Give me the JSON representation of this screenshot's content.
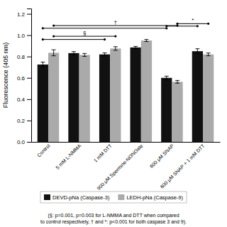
{
  "chart_data": {
    "type": "bar",
    "ylabel": "Fluorescence (405 nm)",
    "categories": [
      "Control",
      "5 mM L-NMMA",
      "1 mM DTT",
      "900 μM Spermine-NONOate",
      "600 μM SNAP",
      "600 μM SNAP + 1 mM DTT"
    ],
    "series": [
      {
        "name": "DEVD-pNa (Caspase-3)",
        "color": "#111111",
        "values": [
          0.725,
          0.832,
          0.82,
          0.885,
          0.6,
          0.85
        ],
        "errors": [
          0.023,
          0.014,
          0.014,
          0.01,
          0.016,
          0.023
        ]
      },
      {
        "name": "LEDH-pNa (Caspase-9)",
        "color": "#aaaaaa",
        "values": [
          0.835,
          0.815,
          0.875,
          0.95,
          0.563,
          0.82
        ],
        "errors": [
          0.028,
          0.014,
          0.017,
          0.01,
          0.013,
          0.013
        ]
      }
    ],
    "ylim": [
      0.0,
      1.25
    ],
    "yticks": [
      {
        "value": 0.0,
        "label": "0.0"
      },
      0.2,
      0.4,
      0.6,
      0.8,
      {
        "value": 1.0,
        "label": "1.0"
      },
      1.2
    ],
    "annotations": [
      {
        "label": "§",
        "from": "Control",
        "to": "1 mM DTT",
        "y": [
          0.96,
          0.99
        ]
      },
      {
        "label": "†",
        "from": "Control",
        "to": "600 μM SNAP",
        "y": [
          1.065,
          1.09
        ]
      },
      {
        "label": "*",
        "from": "600 μM SNAP",
        "to": "600 μM SNAP + 1 mM DTT",
        "y": [
          1.085,
          1.108
        ]
      }
    ],
    "legend": "bottom",
    "footnote": "(§: p=0.001, p=0.003 for L-NMMA and DTT when compared\nto control respectively, † and *: p<0.001 for both caspase 3 and 9)."
  }
}
